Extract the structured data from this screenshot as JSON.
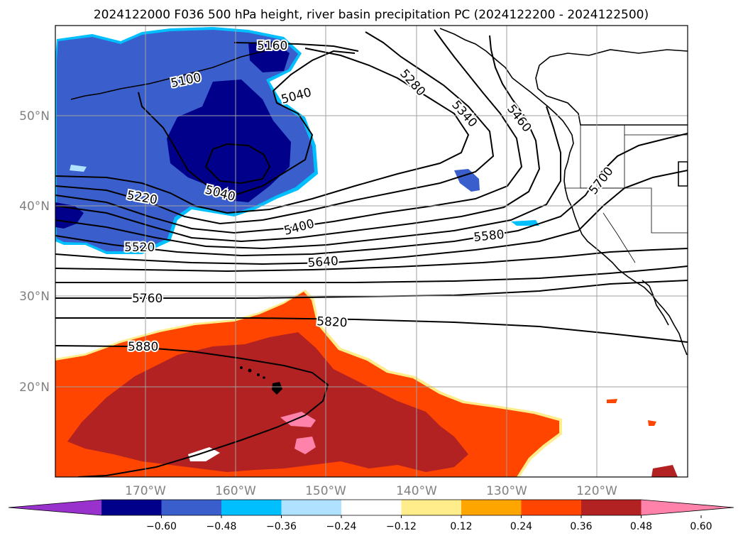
{
  "title": "2024122000 F036 500 hPa height, river basin precipitation PC (2024122200 - 2024122500)",
  "lat_labels": [
    "50°N",
    "40°N",
    "30°N",
    "20°N"
  ],
  "lon_labels": [
    "170°W",
    "160°W",
    "150°W",
    "140°W",
    "130°W",
    "120°W"
  ],
  "contour_labels": [
    "5160",
    "5100",
    "5040",
    "5040",
    "5220",
    "5280",
    "5340",
    "5460",
    "5400",
    "5520",
    "5580",
    "5640",
    "5700",
    "5760",
    "5820",
    "5880"
  ],
  "colorbar": {
    "colors": [
      "#9932cc",
      "#00008b",
      "#3a5fcd",
      "#00bfff",
      "#b0e2ff",
      "#ffffff",
      "#ffec8b",
      "#ffa500",
      "#ff4500",
      "#b22222",
      "#ff82ab"
    ],
    "ticks": [
      "−0.60",
      "−0.48",
      "−0.36",
      "−0.24",
      "−0.12",
      "0.12",
      "0.24",
      "0.36",
      "0.48",
      "0.60"
    ]
  }
}
